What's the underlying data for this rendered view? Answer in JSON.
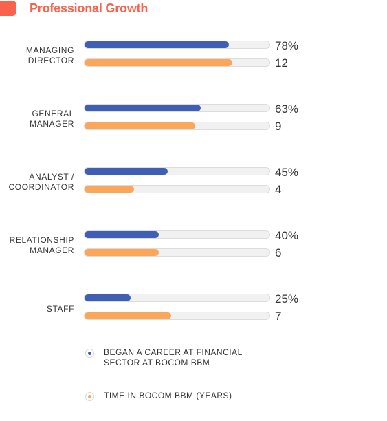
{
  "header": {
    "title": "Professional Growth",
    "accent_color": "#f9634d"
  },
  "chart_data": {
    "type": "bar",
    "orientation": "horizontal",
    "categories": [
      [
        "MANAGING",
        "DIRECTOR"
      ],
      [
        "GENERAL",
        "MANAGER"
      ],
      [
        "ANALYST /",
        "COORDINATOR"
      ],
      [
        "RELATIONSHIP",
        "MANAGER"
      ],
      [
        "STAFF"
      ]
    ],
    "series": [
      {
        "name": "BEGAN A CAREER AT FINANCIAL SECTOR AT BOCOM BBM",
        "color": "#3f5fb5",
        "values": [
          78,
          63,
          45,
          40,
          25
        ],
        "labels": [
          "78%",
          "63%",
          "45%",
          "40%",
          "25%"
        ],
        "max": 100
      },
      {
        "name": "TIME IN BOCOM BBM (YEARS)",
        "color": "#fba75a",
        "values": [
          12,
          9,
          4,
          6,
          7
        ],
        "labels": [
          "12",
          "9",
          "4",
          "6",
          "7"
        ],
        "max": 15
      }
    ]
  },
  "legend": [
    {
      "lines": [
        "BEGAN A CAREER AT FINANCIAL",
        "SECTOR AT BOCOM BBM"
      ],
      "color": "#3f5fb5"
    },
    {
      "lines": [
        "TIME IN BOCOM BBM (YEARS)"
      ],
      "color": "#fba75a"
    }
  ]
}
